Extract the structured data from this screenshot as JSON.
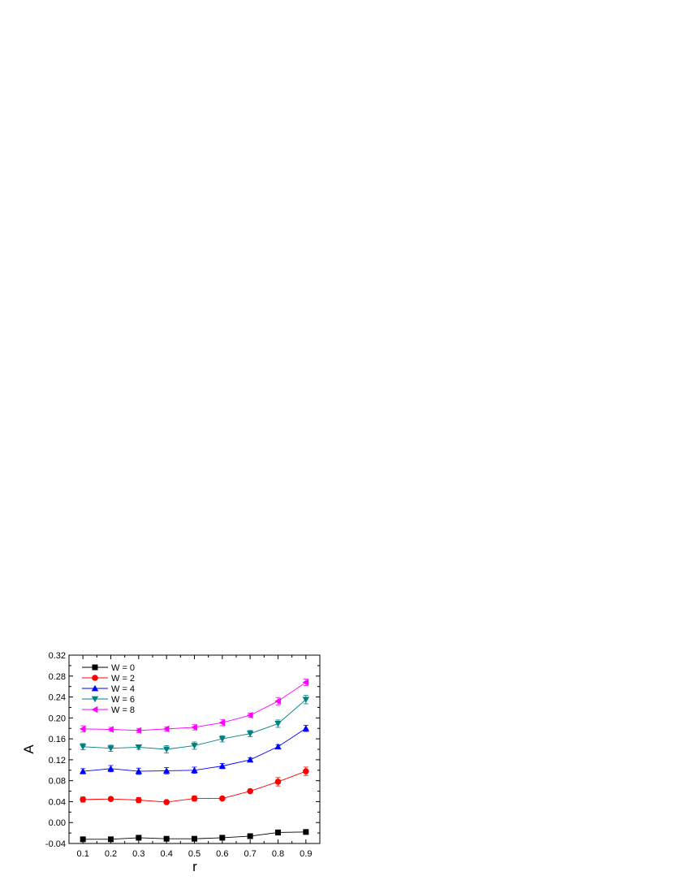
{
  "chart_data": {
    "type": "line",
    "title": "",
    "xlabel": "r",
    "ylabel": "A",
    "xlim": [
      0.05,
      0.95
    ],
    "ylim": [
      -0.04,
      0.32
    ],
    "xticks": [
      "0.1",
      "0.2",
      "0.3",
      "0.4",
      "0.5",
      "0.6",
      "0.7",
      "0.8",
      "0.9"
    ],
    "yticks": [
      "-0.04",
      "0.00",
      "0.04",
      "0.08",
      "0.12",
      "0.16",
      "0.20",
      "0.24",
      "0.28",
      "0.32"
    ],
    "grid": false,
    "legend_position": "top-left",
    "x": [
      0.1,
      0.2,
      0.3,
      0.4,
      0.5,
      0.6,
      0.7,
      0.8,
      0.9
    ],
    "series": [
      {
        "name": "W = 0",
        "marker": "square",
        "color": "#000000",
        "values": [
          -0.032,
          -0.032,
          -0.029,
          -0.031,
          -0.031,
          -0.029,
          -0.026,
          -0.019,
          -0.018
        ],
        "errors": [
          0.002,
          0.004,
          0.003,
          0.003,
          0.003,
          0.003,
          0.003,
          0.005,
          0.002
        ]
      },
      {
        "name": "W = 2",
        "marker": "circle",
        "color": "#ff0000",
        "values": [
          0.044,
          0.045,
          0.043,
          0.039,
          0.046,
          0.046,
          0.06,
          0.078,
          0.098
        ],
        "errors": [
          0.005,
          0.003,
          0.005,
          0.002,
          0.005,
          0.003,
          0.003,
          0.008,
          0.008
        ]
      },
      {
        "name": "W = 4",
        "marker": "triangle-up",
        "color": "#0000ff",
        "values": [
          0.098,
          0.103,
          0.098,
          0.099,
          0.1,
          0.108,
          0.12,
          0.145,
          0.18
        ],
        "errors": [
          0.005,
          0.006,
          0.006,
          0.006,
          0.006,
          0.005,
          0.004,
          0.004,
          0.006
        ]
      },
      {
        "name": "W = 6",
        "marker": "triangle-down",
        "color": "#008080",
        "values": [
          0.145,
          0.142,
          0.144,
          0.14,
          0.147,
          0.16,
          0.17,
          0.189,
          0.235
        ],
        "errors": [
          0.006,
          0.006,
          0.004,
          0.007,
          0.007,
          0.006,
          0.006,
          0.007,
          0.008
        ]
      },
      {
        "name": "W = 8",
        "marker": "triangle-left",
        "color": "#ff00ff",
        "values": [
          0.179,
          0.178,
          0.176,
          0.179,
          0.182,
          0.191,
          0.205,
          0.232,
          0.268
        ],
        "errors": [
          0.006,
          0.004,
          0.004,
          0.004,
          0.005,
          0.006,
          0.004,
          0.007,
          0.006
        ]
      }
    ]
  }
}
